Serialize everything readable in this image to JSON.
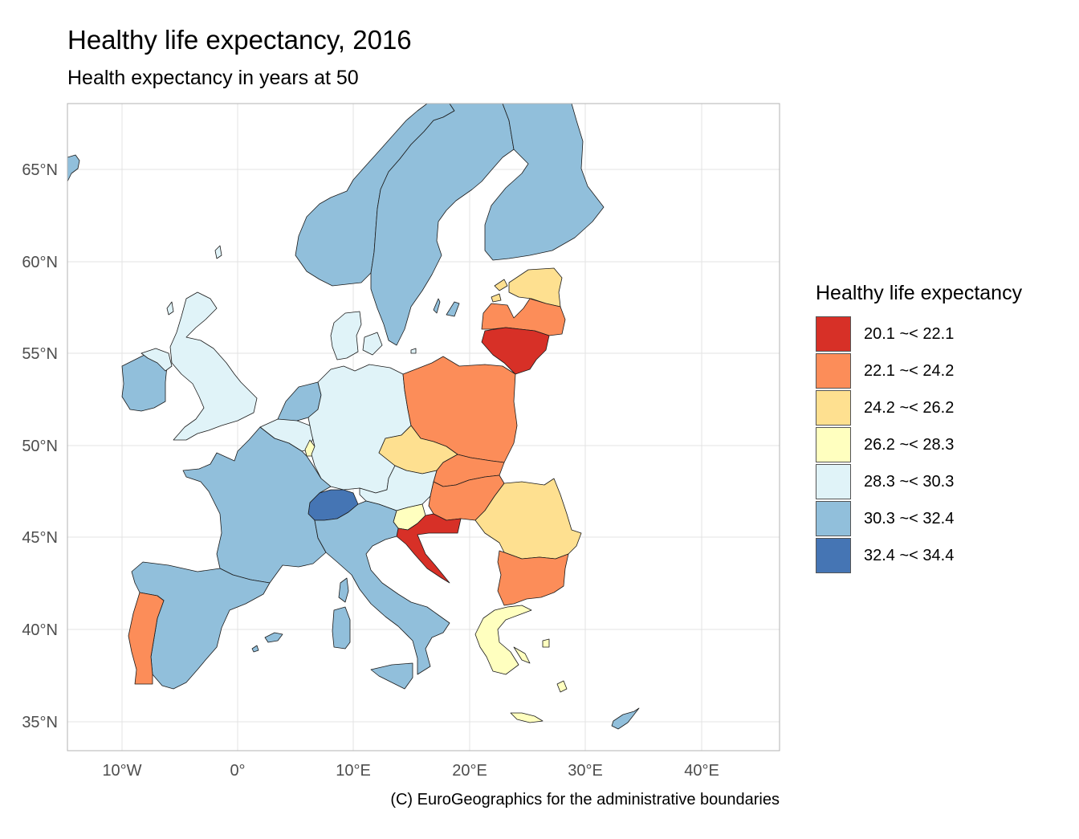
{
  "title": "Healthy life expectancy, 2016",
  "subtitle": "Health expectancy in years at 50",
  "caption": "(C) EuroGeographics for the administrative boundaries",
  "axes": {
    "y_ticks": [
      "65°N",
      "60°N",
      "55°N",
      "50°N",
      "45°N",
      "40°N",
      "35°N"
    ],
    "x_ticks": [
      "10°W",
      "0°",
      "10°E",
      "20°E",
      "30°E",
      "40°E"
    ]
  },
  "legend": {
    "title": "Healthy life expectancy",
    "items": [
      {
        "label": "20.1 ~< 22.1",
        "color": "#d73027"
      },
      {
        "label": "22.1 ~< 24.2",
        "color": "#fc8d59"
      },
      {
        "label": "24.2 ~< 26.2",
        "color": "#fee090"
      },
      {
        "label": "26.2 ~< 28.3",
        "color": "#ffffbf"
      },
      {
        "label": "28.3 ~< 30.3",
        "color": "#e0f3f8"
      },
      {
        "label": "30.3 ~< 32.4",
        "color": "#91bfdb"
      },
      {
        "label": "32.4 ~< 34.4",
        "color": "#4575b4"
      }
    ]
  },
  "map_data": {
    "type": "choropleth",
    "regions": [
      {
        "id": "norway",
        "class": "30.3 ~< 32.4"
      },
      {
        "id": "sweden",
        "class": "30.3 ~< 32.4"
      },
      {
        "id": "finland",
        "class": "30.3 ~< 32.4"
      },
      {
        "id": "iceland",
        "class": "30.3 ~< 32.4"
      },
      {
        "id": "estonia",
        "class": "24.2 ~< 26.2"
      },
      {
        "id": "latvia",
        "class": "22.1 ~< 24.2"
      },
      {
        "id": "lithuania",
        "class": "20.1 ~< 22.1"
      },
      {
        "id": "united-kingdom",
        "class": "28.3 ~< 30.3"
      },
      {
        "id": "ireland",
        "class": "30.3 ~< 32.4"
      },
      {
        "id": "denmark",
        "class": "28.3 ~< 30.3"
      },
      {
        "id": "netherlands",
        "class": "30.3 ~< 32.4"
      },
      {
        "id": "belgium",
        "class": "28.3 ~< 30.3"
      },
      {
        "id": "luxembourg",
        "class": "26.2 ~< 28.3"
      },
      {
        "id": "germany",
        "class": "28.3 ~< 30.3"
      },
      {
        "id": "poland",
        "class": "22.1 ~< 24.2"
      },
      {
        "id": "czechia",
        "class": "24.2 ~< 26.2"
      },
      {
        "id": "slovakia",
        "class": "22.1 ~< 24.2"
      },
      {
        "id": "austria",
        "class": "28.3 ~< 30.3"
      },
      {
        "id": "hungary",
        "class": "22.1 ~< 24.2"
      },
      {
        "id": "romania",
        "class": "24.2 ~< 26.2"
      },
      {
        "id": "bulgaria",
        "class": "22.1 ~< 24.2"
      },
      {
        "id": "slovenia",
        "class": "26.2 ~< 28.3"
      },
      {
        "id": "croatia",
        "class": "20.1 ~< 22.1"
      },
      {
        "id": "switzerland",
        "class": "32.4 ~< 34.4"
      },
      {
        "id": "france",
        "class": "30.3 ~< 32.4"
      },
      {
        "id": "italy",
        "class": "30.3 ~< 32.4"
      },
      {
        "id": "spain",
        "class": "30.3 ~< 32.4"
      },
      {
        "id": "portugal",
        "class": "22.1 ~< 24.2"
      },
      {
        "id": "greece",
        "class": "26.2 ~< 28.3"
      },
      {
        "id": "cyprus",
        "class": "30.3 ~< 32.4"
      }
    ]
  }
}
